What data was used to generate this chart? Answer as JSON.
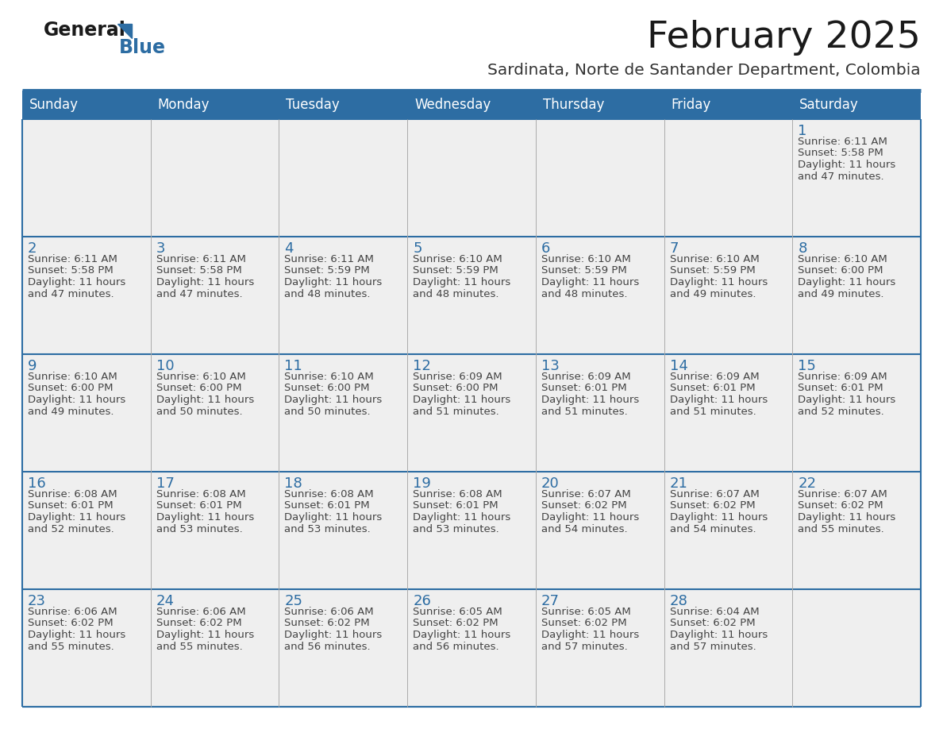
{
  "title": "February 2025",
  "subtitle": "Sardinata, Norte de Santander Department, Colombia",
  "days_of_week": [
    "Sunday",
    "Monday",
    "Tuesday",
    "Wednesday",
    "Thursday",
    "Friday",
    "Saturday"
  ],
  "header_bg_color": "#2D6DA3",
  "header_text_color": "#FFFFFF",
  "cell_bg_color": "#EFEFEF",
  "day_num_color": "#2D6DA3",
  "text_color": "#444444",
  "title_color": "#1A1A1A",
  "subtitle_color": "#333333",
  "logo_general_color": "#1A1A1A",
  "logo_blue_color": "#2D6DA3",
  "divider_color": "#2D6DA3",
  "border_color": "#2D6DA3",
  "inner_line_color": "#AAAAAA",
  "calendar": [
    [
      null,
      null,
      null,
      null,
      null,
      null,
      1
    ],
    [
      2,
      3,
      4,
      5,
      6,
      7,
      8
    ],
    [
      9,
      10,
      11,
      12,
      13,
      14,
      15
    ],
    [
      16,
      17,
      18,
      19,
      20,
      21,
      22
    ],
    [
      23,
      24,
      25,
      26,
      27,
      28,
      null
    ]
  ],
  "sun_data": {
    "1": {
      "sunrise": "6:11 AM",
      "sunset": "5:58 PM",
      "daylight_h": "11 hours",
      "daylight_m": "47 minutes"
    },
    "2": {
      "sunrise": "6:11 AM",
      "sunset": "5:58 PM",
      "daylight_h": "11 hours",
      "daylight_m": "47 minutes"
    },
    "3": {
      "sunrise": "6:11 AM",
      "sunset": "5:58 PM",
      "daylight_h": "11 hours",
      "daylight_m": "47 minutes"
    },
    "4": {
      "sunrise": "6:11 AM",
      "sunset": "5:59 PM",
      "daylight_h": "11 hours",
      "daylight_m": "48 minutes"
    },
    "5": {
      "sunrise": "6:10 AM",
      "sunset": "5:59 PM",
      "daylight_h": "11 hours",
      "daylight_m": "48 minutes"
    },
    "6": {
      "sunrise": "6:10 AM",
      "sunset": "5:59 PM",
      "daylight_h": "11 hours",
      "daylight_m": "48 minutes"
    },
    "7": {
      "sunrise": "6:10 AM",
      "sunset": "5:59 PM",
      "daylight_h": "11 hours",
      "daylight_m": "49 minutes"
    },
    "8": {
      "sunrise": "6:10 AM",
      "sunset": "6:00 PM",
      "daylight_h": "11 hours",
      "daylight_m": "49 minutes"
    },
    "9": {
      "sunrise": "6:10 AM",
      "sunset": "6:00 PM",
      "daylight_h": "11 hours",
      "daylight_m": "49 minutes"
    },
    "10": {
      "sunrise": "6:10 AM",
      "sunset": "6:00 PM",
      "daylight_h": "11 hours",
      "daylight_m": "50 minutes"
    },
    "11": {
      "sunrise": "6:10 AM",
      "sunset": "6:00 PM",
      "daylight_h": "11 hours",
      "daylight_m": "50 minutes"
    },
    "12": {
      "sunrise": "6:09 AM",
      "sunset": "6:00 PM",
      "daylight_h": "11 hours",
      "daylight_m": "51 minutes"
    },
    "13": {
      "sunrise": "6:09 AM",
      "sunset": "6:01 PM",
      "daylight_h": "11 hours",
      "daylight_m": "51 minutes"
    },
    "14": {
      "sunrise": "6:09 AM",
      "sunset": "6:01 PM",
      "daylight_h": "11 hours",
      "daylight_m": "51 minutes"
    },
    "15": {
      "sunrise": "6:09 AM",
      "sunset": "6:01 PM",
      "daylight_h": "11 hours",
      "daylight_m": "52 minutes"
    },
    "16": {
      "sunrise": "6:08 AM",
      "sunset": "6:01 PM",
      "daylight_h": "11 hours",
      "daylight_m": "52 minutes"
    },
    "17": {
      "sunrise": "6:08 AM",
      "sunset": "6:01 PM",
      "daylight_h": "11 hours",
      "daylight_m": "53 minutes"
    },
    "18": {
      "sunrise": "6:08 AM",
      "sunset": "6:01 PM",
      "daylight_h": "11 hours",
      "daylight_m": "53 minutes"
    },
    "19": {
      "sunrise": "6:08 AM",
      "sunset": "6:01 PM",
      "daylight_h": "11 hours",
      "daylight_m": "53 minutes"
    },
    "20": {
      "sunrise": "6:07 AM",
      "sunset": "6:02 PM",
      "daylight_h": "11 hours",
      "daylight_m": "54 minutes"
    },
    "21": {
      "sunrise": "6:07 AM",
      "sunset": "6:02 PM",
      "daylight_h": "11 hours",
      "daylight_m": "54 minutes"
    },
    "22": {
      "sunrise": "6:07 AM",
      "sunset": "6:02 PM",
      "daylight_h": "11 hours",
      "daylight_m": "55 minutes"
    },
    "23": {
      "sunrise": "6:06 AM",
      "sunset": "6:02 PM",
      "daylight_h": "11 hours",
      "daylight_m": "55 minutes"
    },
    "24": {
      "sunrise": "6:06 AM",
      "sunset": "6:02 PM",
      "daylight_h": "11 hours",
      "daylight_m": "55 minutes"
    },
    "25": {
      "sunrise": "6:06 AM",
      "sunset": "6:02 PM",
      "daylight_h": "11 hours",
      "daylight_m": "56 minutes"
    },
    "26": {
      "sunrise": "6:05 AM",
      "sunset": "6:02 PM",
      "daylight_h": "11 hours",
      "daylight_m": "56 minutes"
    },
    "27": {
      "sunrise": "6:05 AM",
      "sunset": "6:02 PM",
      "daylight_h": "11 hours",
      "daylight_m": "57 minutes"
    },
    "28": {
      "sunrise": "6:04 AM",
      "sunset": "6:02 PM",
      "daylight_h": "11 hours",
      "daylight_m": "57 minutes"
    }
  }
}
